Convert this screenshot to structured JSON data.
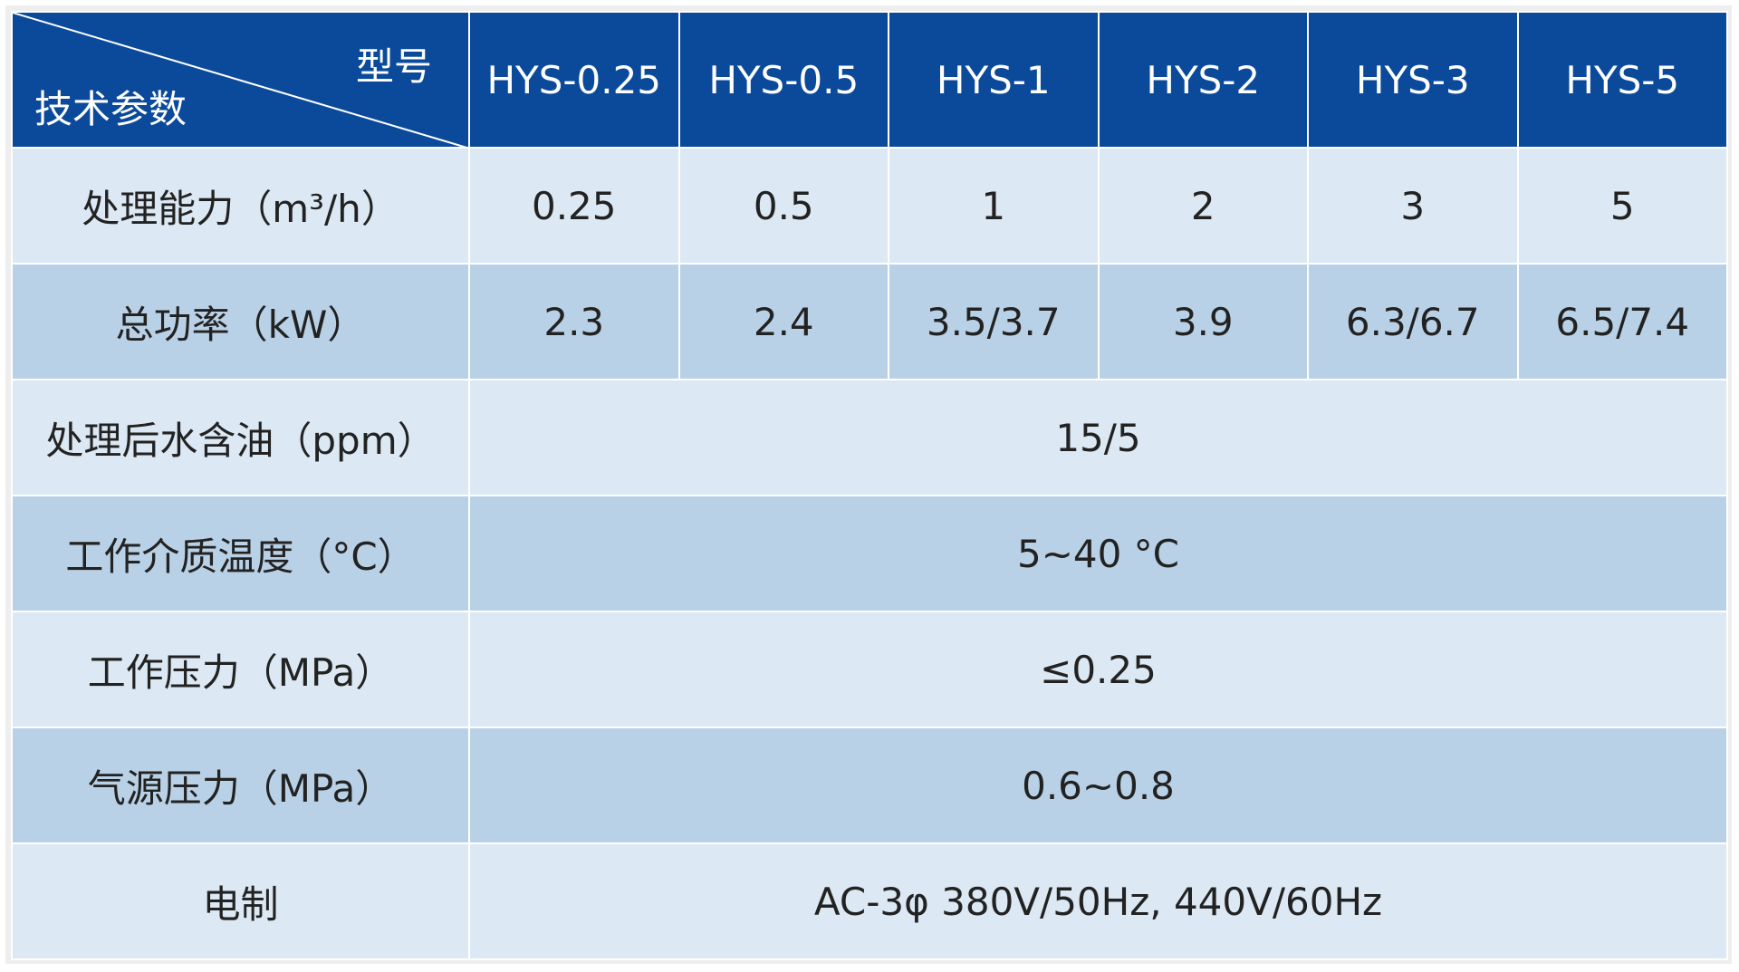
{
  "header": {
    "corner_top": "型号",
    "corner_bottom": "技术参数",
    "models": [
      "HYS-0.25",
      "HYS-0.5",
      "HYS-1",
      "HYS-2",
      "HYS-3",
      "HYS-5"
    ]
  },
  "rows": [
    {
      "label": "处理能力（m³/h）",
      "values": [
        "0.25",
        "0.5",
        "1",
        "2",
        "3",
        "5"
      ]
    },
    {
      "label": "总功率（kW）",
      "values": [
        "2.3",
        "2.4",
        "3.5/3.7",
        "3.9",
        "6.3/6.7",
        "6.5/7.4"
      ]
    },
    {
      "label": "处理后水含油（ppm）",
      "values": [
        "15/5"
      ]
    },
    {
      "label": "工作介质温度（°C）",
      "values": [
        "5~40 °C"
      ]
    },
    {
      "label": "工作压力（MPa）",
      "values": [
        "≤0.25"
      ]
    },
    {
      "label": "气源压力（MPa）",
      "values": [
        "0.6~0.8"
      ]
    },
    {
      "label": "电制",
      "values": [
        "AC-3φ 380V/50Hz, 440V/60Hz"
      ]
    }
  ]
}
